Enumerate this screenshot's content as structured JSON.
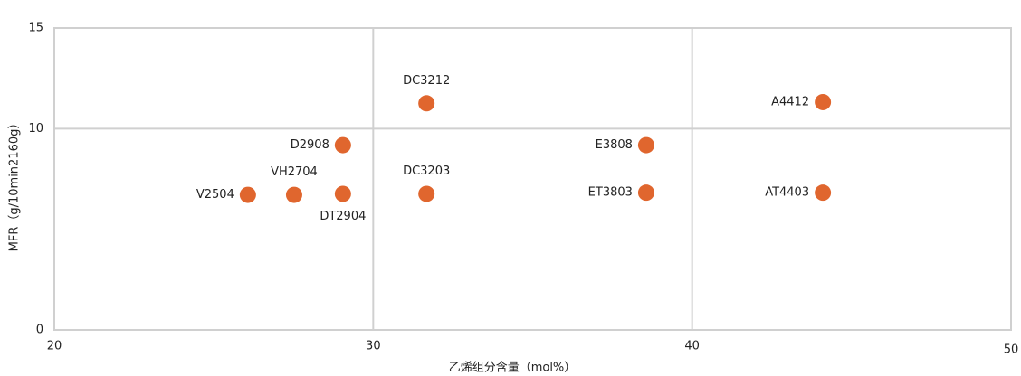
{
  "chart_data": {
    "type": "scatter",
    "x_label": "乙烯组分含量（mol%）",
    "y_label": "MFR（g/10min2160g）",
    "xlim": [
      20,
      50
    ],
    "xticks": [
      20,
      30,
      40,
      50
    ],
    "ylim": [
      0,
      15
    ],
    "yticks": [
      0,
      10,
      15
    ],
    "grid": true,
    "point_labels": [
      "V2504",
      "VH2704",
      "DT2904",
      "D2908",
      "DC3212",
      "DC3203",
      "E3808",
      "ET3803",
      "A4412",
      "AT4403"
    ],
    "x": [
      26.07,
      27.52,
      29.05,
      29.05,
      31.67,
      31.67,
      38.56,
      38.56,
      44.1,
      44.1
    ],
    "series": [
      {
        "color": "#e0662e",
        "values": [
          6.71,
          6.71,
          6.76,
          9.18,
          11.26,
          6.76,
          9.18,
          6.82,
          11.32,
          6.82
        ]
      }
    ]
  }
}
